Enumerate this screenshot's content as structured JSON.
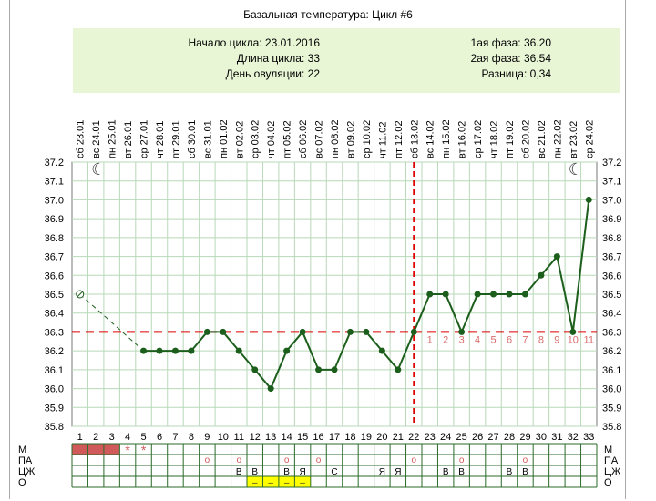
{
  "title": "Базальная температура: Цикл #6",
  "info": {
    "cycle_start": "Начало цикла: 23.01.2016",
    "cycle_length": "Длина цикла: 33",
    "ovulation_day": "День овуляции: 22",
    "phase1": "1ая фаза: 36.20",
    "phase2": "2ая фаза: 36.54",
    "difference": "Разница: 0,34"
  },
  "chart_data": {
    "type": "line",
    "title": "Базальная температура: Цикл #6",
    "x": [
      1,
      2,
      3,
      4,
      5,
      6,
      7,
      8,
      9,
      10,
      11,
      12,
      13,
      14,
      15,
      16,
      17,
      18,
      19,
      20,
      21,
      22,
      23,
      24,
      25,
      26,
      27,
      28,
      29,
      30,
      31,
      32,
      33
    ],
    "dates": [
      "сб 23.01",
      "вс 24.01",
      "пн 25.01",
      "вт 26.01",
      "ср 27.01",
      "чт 28.01",
      "пт 29.01",
      "сб 30.01",
      "вс 31.01",
      "пн 01.02",
      "вт 02.02",
      "ср 03.02",
      "чт 04.02",
      "пт 05.02",
      "сб 06.02",
      "вс 07.02",
      "пн 08.02",
      "вт 09.02",
      "ср 10.02",
      "чт 11.02",
      "пт 12.02",
      "сб 13.02",
      "вс 14.02",
      "пн 15.02",
      "вт 16.02",
      "ср 17.02",
      "чт 18.02",
      "пт 19.02",
      "сб 20.02",
      "вс 21.02",
      "пн 22.02",
      "вт 23.02",
      "ср 24.02"
    ],
    "series": [
      {
        "values": [
          36.5,
          null,
          null,
          null,
          36.2,
          36.2,
          36.2,
          36.2,
          36.3,
          36.3,
          36.2,
          36.1,
          36.0,
          36.2,
          36.3,
          36.1,
          36.1,
          36.3,
          36.3,
          36.2,
          36.1,
          36.3,
          36.5,
          36.5,
          36.3,
          36.5,
          36.5,
          36.5,
          36.5,
          36.6,
          36.7,
          36.3,
          37.0
        ],
        "color": "#1c5e1c"
      }
    ],
    "excluded_points": [
      1
    ],
    "ylim": [
      35.8,
      37.2
    ],
    "yticks": [
      "37.2",
      "37.1",
      "37.0",
      "36.9",
      "36.8",
      "36.7",
      "36.6",
      "36.5",
      "36.4",
      "36.3",
      "36.2",
      "36.1",
      "36.0",
      "35.9",
      "35.8"
    ],
    "cover_line": 36.3,
    "ovulation_day": 22,
    "post_ovulation_labels": [
      "1",
      "2",
      "3",
      "4",
      "5",
      "6",
      "7",
      "8",
      "9",
      "10",
      "11"
    ],
    "moon_days": [
      2,
      32
    ],
    "grid": true,
    "line_color": "#1c5e1c",
    "cover_line_color": "#dd0000",
    "bottom_rows": {
      "labels": [
        "М",
        "ПА",
        "ЦЖ",
        "О"
      ],
      "menstruation": {
        "fill_days": [
          1,
          2,
          3
        ],
        "star_days": [
          4,
          5
        ],
        "fill_color": "#d05a5a",
        "star": "*"
      },
      "pa_circle_days": [
        9,
        11,
        14,
        16,
        22,
        25,
        29
      ],
      "pa_mark": "o",
      "cervical": [
        {
          "day": 11,
          "text": "В"
        },
        {
          "day": 12,
          "text": "В"
        },
        {
          "day": 14,
          "text": "В"
        },
        {
          "day": 15,
          "text": "Я"
        },
        {
          "day": 17,
          "text": "С"
        },
        {
          "day": 20,
          "text": "Я"
        },
        {
          "day": 21,
          "text": "Я"
        },
        {
          "day": 24,
          "text": "В"
        },
        {
          "day": 25,
          "text": "В"
        },
        {
          "day": 28,
          "text": "В"
        },
        {
          "day": 29,
          "text": "В"
        }
      ],
      "ovulation_test_days": [
        12,
        13,
        14,
        15
      ],
      "ovulation_test_color": "#ffff00",
      "ovulation_test_mark": "–"
    }
  }
}
